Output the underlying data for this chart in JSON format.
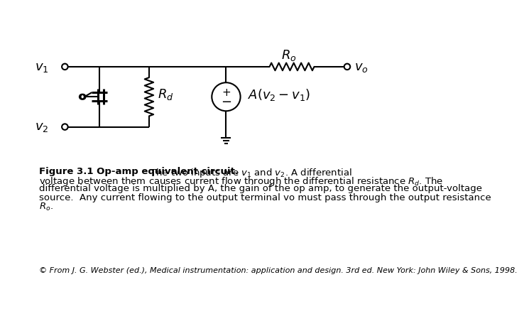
{
  "bg_color": "#ffffff",
  "fig_width": 7.2,
  "fig_height": 5.4,
  "caption_bold": "Figure 3.1 Op-amp equivalent circuit.",
  "footnote": "© From J. G. Webster (ed.), Medical instrumentation: application and design. 3rd ed. New York: John Wiley & Sons, 1998."
}
